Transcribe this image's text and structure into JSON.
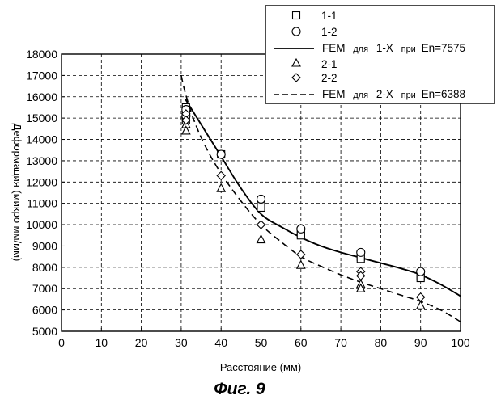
{
  "figure": {
    "caption": "Фиг. 9"
  },
  "chart_data": {
    "type": "scatter",
    "title": "",
    "xlabel": "Расстояние (мм)",
    "ylabel": "Деформация (микро мм/мм)",
    "xlim": [
      0,
      100
    ],
    "ylim": [
      5000,
      18000
    ],
    "x_ticks": [
      0,
      10,
      20,
      30,
      40,
      50,
      60,
      70,
      80,
      90,
      100
    ],
    "y_ticks": [
      5000,
      6000,
      7000,
      8000,
      9000,
      10000,
      11000,
      12000,
      13000,
      14000,
      15000,
      16000,
      17000,
      18000
    ],
    "grid": true,
    "legend_position": "top-right",
    "series": [
      {
        "name": "1-1",
        "style": "square-marker",
        "points": [
          [
            31.2,
            15500
          ],
          [
            31.2,
            15200
          ],
          [
            31.2,
            14900
          ],
          [
            40,
            13300
          ],
          [
            50,
            10900
          ],
          [
            50,
            10800
          ],
          [
            60,
            9600
          ],
          [
            60,
            9500
          ],
          [
            75,
            8500
          ],
          [
            75,
            8400
          ],
          [
            90,
            7600
          ],
          [
            90,
            7500
          ]
        ]
      },
      {
        "name": "1-2",
        "style": "circle-marker",
        "points": [
          [
            31.2,
            15400
          ],
          [
            31.2,
            15100
          ],
          [
            40,
            13300
          ],
          [
            50,
            11200
          ],
          [
            60,
            9800
          ],
          [
            75,
            8700
          ],
          [
            90,
            7800
          ]
        ]
      },
      {
        "name": "FEM",
        "legend_mid": "для",
        "legend_tail": "1-X",
        "legend_cond": "при",
        "legend_value": "En=7575",
        "style": "solid-line",
        "points": [
          [
            31,
            15900
          ],
          [
            33,
            15300
          ],
          [
            36,
            14400
          ],
          [
            40,
            13200
          ],
          [
            45,
            11700
          ],
          [
            50,
            10500
          ],
          [
            55,
            9900
          ],
          [
            60,
            9400
          ],
          [
            65,
            9000
          ],
          [
            70,
            8700
          ],
          [
            75,
            8450
          ],
          [
            80,
            8200
          ],
          [
            85,
            7950
          ],
          [
            90,
            7650
          ],
          [
            95,
            7200
          ],
          [
            100,
            6650
          ]
        ]
      },
      {
        "name": "2-1",
        "style": "triangle-marker",
        "points": [
          [
            31.2,
            14700
          ],
          [
            31.2,
            14400
          ],
          [
            40,
            11700
          ],
          [
            50,
            9300
          ],
          [
            60,
            8100
          ],
          [
            75,
            7200
          ],
          [
            75,
            7000
          ],
          [
            90,
            6200
          ]
        ]
      },
      {
        "name": "2-2",
        "style": "diamond-marker",
        "points": [
          [
            31.2,
            15200
          ],
          [
            31.2,
            14900
          ],
          [
            40,
            12300
          ],
          [
            50,
            10000
          ],
          [
            60,
            8600
          ],
          [
            75,
            7800
          ],
          [
            75,
            7600
          ],
          [
            90,
            6600
          ]
        ]
      },
      {
        "name": "FEM",
        "legend_mid": "для",
        "legend_tail": "2-X",
        "legend_cond": "при",
        "legend_value": "En=6388",
        "style": "dashed-line",
        "points": [
          [
            30,
            17000
          ],
          [
            31,
            16200
          ],
          [
            33,
            15000
          ],
          [
            36,
            13700
          ],
          [
            40,
            12400
          ],
          [
            45,
            11100
          ],
          [
            50,
            10000
          ],
          [
            55,
            9200
          ],
          [
            60,
            8500
          ],
          [
            65,
            8050
          ],
          [
            70,
            7650
          ],
          [
            75,
            7300
          ],
          [
            80,
            7000
          ],
          [
            85,
            6700
          ],
          [
            90,
            6400
          ],
          [
            95,
            6000
          ],
          [
            100,
            5450
          ]
        ]
      }
    ]
  }
}
